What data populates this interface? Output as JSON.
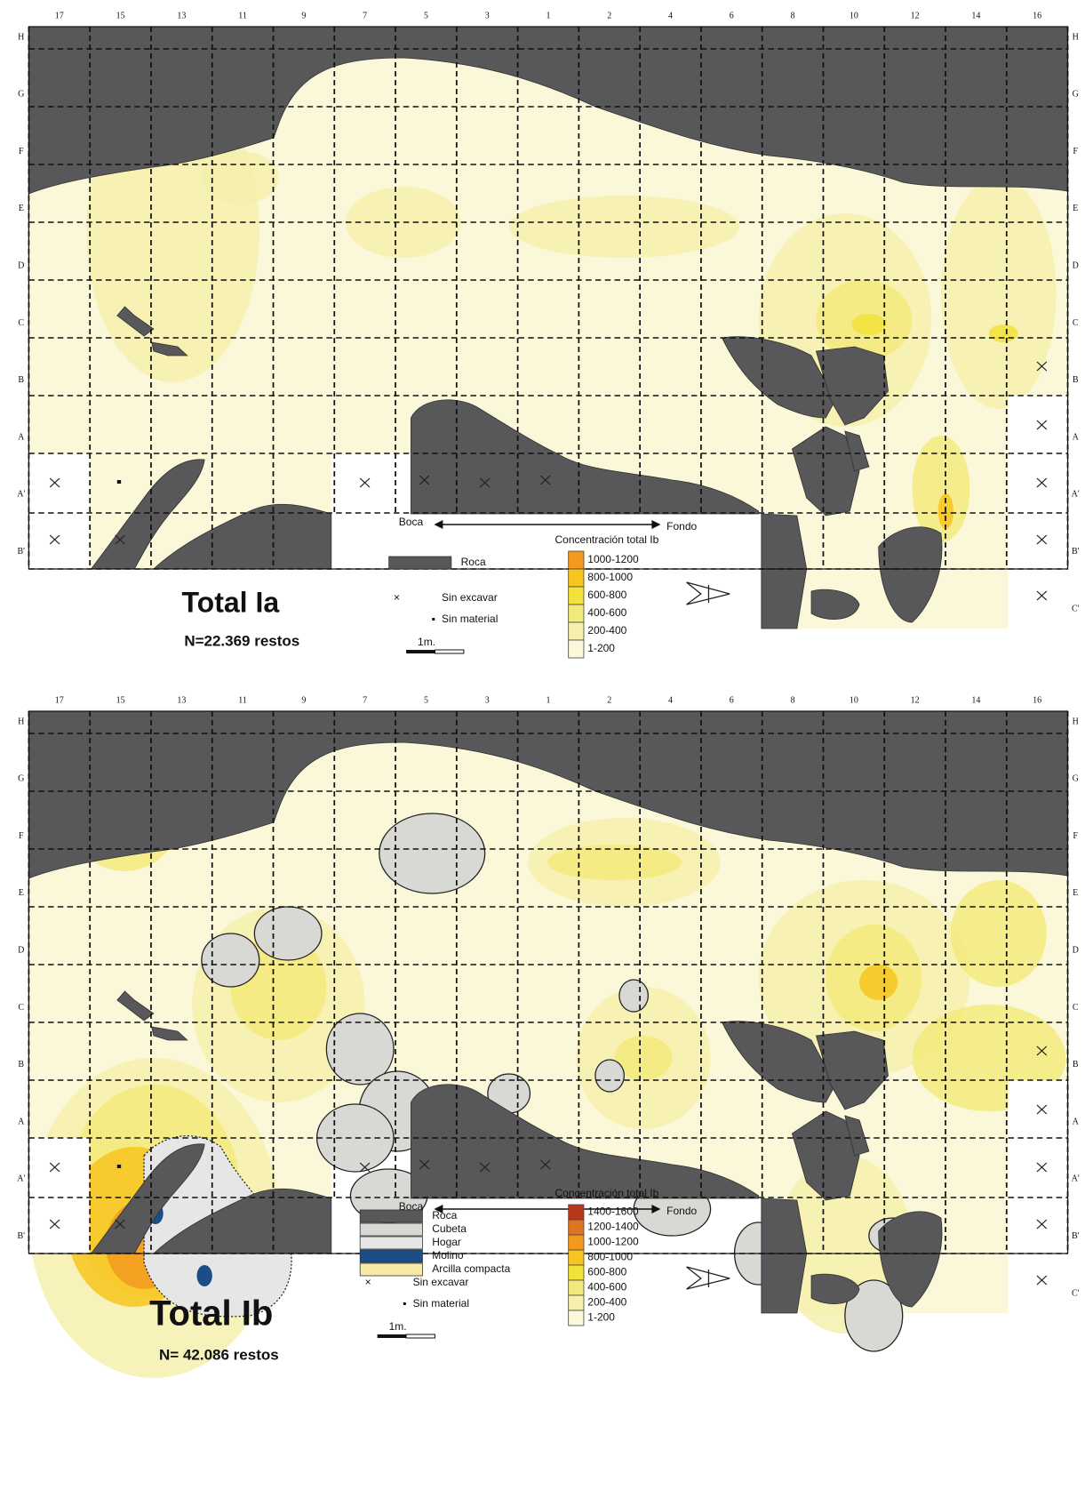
{
  "panels": [
    {
      "title": "Total Ia",
      "count": "N=22.369 restos",
      "columns": [
        "17",
        "15",
        "13",
        "11",
        "9",
        "7",
        "5",
        "3",
        "1",
        "2",
        "4",
        "6",
        "8",
        "10",
        "12",
        "14",
        "16"
      ],
      "rows_left": [
        "H",
        "G",
        "F",
        "E",
        "D",
        "C",
        "B",
        "A",
        "A'",
        "B'"
      ],
      "rows_right": [
        "H",
        "G",
        "F",
        "E",
        "D",
        "C",
        "B",
        "A",
        "A'",
        "B'",
        "C'"
      ],
      "direction": {
        "start": "Boca",
        "end": "Fondo"
      },
      "features": [
        {
          "label": "Roca",
          "color": "#58585a"
        }
      ],
      "markers": {
        "unexcavated": "Sin excavar",
        "no_material": "Sin material"
      },
      "scale": "1m.",
      "concentration_title": "Concentración total Ib",
      "classes": [
        {
          "label": "1000-1200",
          "color": "#f39a1e"
        },
        {
          "label": "800-1000",
          "color": "#f7c51e"
        },
        {
          "label": "600-800",
          "color": "#f3e23a"
        },
        {
          "label": "400-600",
          "color": "#f3ea7c"
        },
        {
          "label": "200-400",
          "color": "#f6f0ad"
        },
        {
          "label": "1-200",
          "color": "#fbf8da"
        }
      ]
    },
    {
      "title": "Total Ib",
      "count": "N= 42.086 restos",
      "columns": [
        "17",
        "15",
        "13",
        "11",
        "9",
        "7",
        "5",
        "3",
        "1",
        "2",
        "4",
        "6",
        "8",
        "10",
        "12",
        "14",
        "16"
      ],
      "rows_left": [
        "H",
        "G",
        "F",
        "E",
        "D",
        "C",
        "B",
        "A",
        "A'",
        "B'"
      ],
      "rows_right": [
        "H",
        "G",
        "F",
        "E",
        "D",
        "C",
        "B",
        "A",
        "A'",
        "B'",
        "C'"
      ],
      "direction": {
        "start": "Boca",
        "end": "Fondo"
      },
      "features": [
        {
          "label": "Roca",
          "color": "#58585a"
        },
        {
          "label": "Cubeta",
          "color": "#d8d8d4"
        },
        {
          "label": "Hogar",
          "color": "#e6e6e6"
        },
        {
          "label": "Molino",
          "color": "#1c4e86"
        },
        {
          "label": "Arcilla compacta",
          "color": "#f7e9a8"
        }
      ],
      "markers": {
        "unexcavated": "Sin excavar",
        "no_material": "Sin material"
      },
      "scale": "1m.",
      "concentration_title": "Concentración total Ib",
      "classes": [
        {
          "label": "1400-1600",
          "color": "#b8361a"
        },
        {
          "label": "1200-1400",
          "color": "#e0731f"
        },
        {
          "label": "1000-1200",
          "color": "#f39a1e"
        },
        {
          "label": "800-1000",
          "color": "#f7c51e"
        },
        {
          "label": "600-800",
          "color": "#f3e23a"
        },
        {
          "label": "400-600",
          "color": "#f3ea7c"
        },
        {
          "label": "200-400",
          "color": "#f6f0ad"
        },
        {
          "label": "1-200",
          "color": "#fbf8da"
        }
      ]
    }
  ]
}
